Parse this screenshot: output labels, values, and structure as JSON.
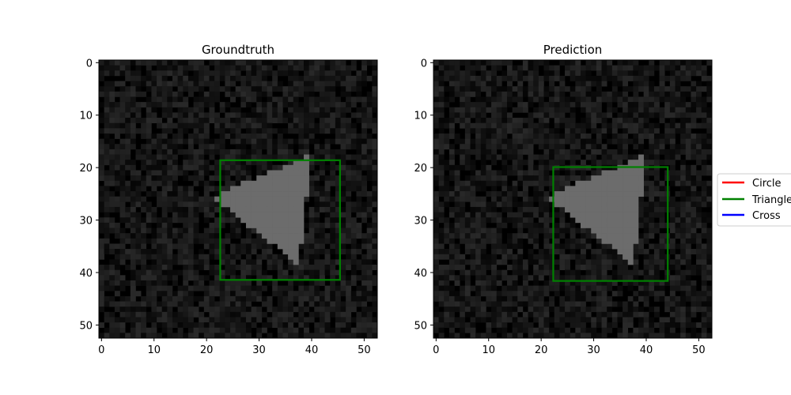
{
  "chart_data": [
    {
      "type": "heatmap",
      "title": "Groundtruth",
      "image_size": 53,
      "xlim": [
        -0.5,
        52.5
      ],
      "ylim": [
        52.5,
        -0.5
      ],
      "xticks": [
        0,
        10,
        20,
        30,
        40,
        50
      ],
      "yticks": [
        0,
        10,
        20,
        30,
        40,
        50
      ],
      "xtick_labels": [
        "0",
        "10",
        "20",
        "30",
        "40",
        "50"
      ],
      "ytick_labels": [
        "0",
        "10",
        "20",
        "30",
        "40",
        "50"
      ],
      "triangle_vertices": [
        [
          21,
          25.5
        ],
        [
          40,
          17.5
        ],
        [
          37.5,
          38.5
        ]
      ],
      "bbox": {
        "label": "Triangle",
        "x0": 22.6,
        "y0": 18.6,
        "x1": 45.4,
        "y1": 41.4,
        "color": "#008000"
      }
    },
    {
      "type": "heatmap",
      "title": "Prediction",
      "image_size": 53,
      "xlim": [
        -0.5,
        52.5
      ],
      "ylim": [
        52.5,
        -0.5
      ],
      "xticks": [
        0,
        10,
        20,
        30,
        40,
        50
      ],
      "yticks": [
        0,
        10,
        20,
        30,
        40,
        50
      ],
      "xtick_labels": [
        "0",
        "10",
        "20",
        "30",
        "40",
        "50"
      ],
      "ytick_labels": [
        "0",
        "10",
        "20",
        "30",
        "40",
        "50"
      ],
      "triangle_vertices": [
        [
          21,
          25.5
        ],
        [
          40,
          17.5
        ],
        [
          37.5,
          38.5
        ]
      ],
      "bbox": {
        "label": "Triangle",
        "x0": 22.3,
        "y0": 19.9,
        "x1": 44.1,
        "y1": 41.6,
        "color": "#008000"
      }
    }
  ],
  "legend": {
    "placement": "right",
    "entries": [
      {
        "label": "Circle",
        "color": "#ff0000"
      },
      {
        "label": "Triangle",
        "color": "#008000"
      },
      {
        "label": "Cross",
        "color": "#0000ff"
      }
    ]
  },
  "colors": {
    "background_noise_dark": "#000000",
    "background_noise_light": "#2a2a2a",
    "shape_fill": "#6c6c6c"
  }
}
